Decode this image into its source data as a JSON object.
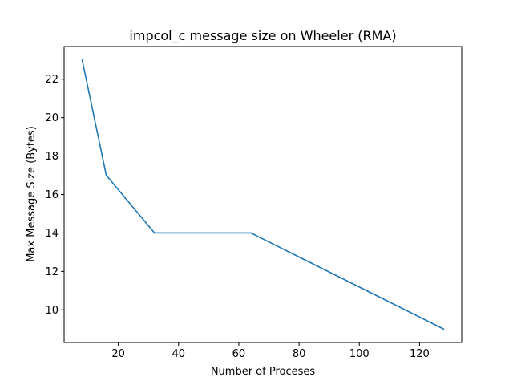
{
  "chart_data": {
    "type": "line",
    "title": "impcol_c message size on Wheeler (RMA)",
    "xlabel": "Number of Proceses",
    "ylabel": "Max Message Size (Bytes)",
    "x": [
      8,
      16,
      32,
      64,
      128
    ],
    "series": [
      {
        "values": [
          23,
          17,
          14,
          14,
          9
        ],
        "color": "#1f77b4"
      }
    ],
    "xlim": [
      2,
      134
    ],
    "ylim": [
      8.3,
      23.7
    ],
    "xticks": [
      20,
      40,
      60,
      80,
      100,
      120
    ],
    "yticks": [
      10,
      12,
      14,
      16,
      18,
      20,
      22
    ],
    "grid": false,
    "legend": "none"
  }
}
